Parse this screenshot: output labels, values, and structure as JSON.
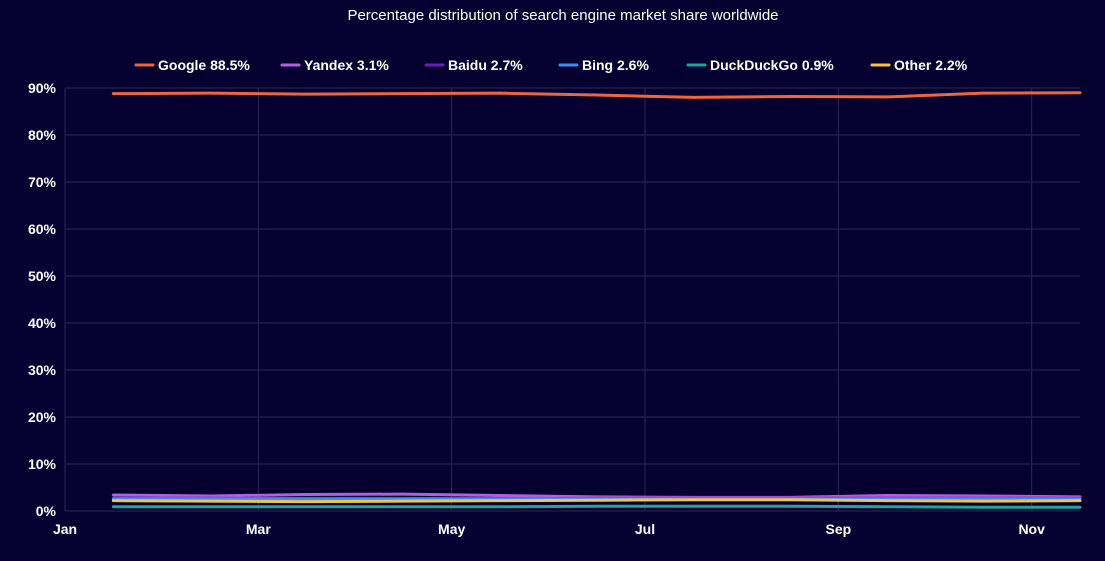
{
  "chart_data": {
    "type": "line",
    "title": "Percentage distribution of search engine market share worldwide",
    "xlabel": "",
    "ylabel": "",
    "ylim": [
      0,
      90
    ],
    "xlim": [
      1,
      11.5
    ],
    "grid": true,
    "legend_position": "top",
    "x_ticks": [
      {
        "x": 1,
        "label": "Jan"
      },
      {
        "x": 3,
        "label": "Mar"
      },
      {
        "x": 5,
        "label": "May"
      },
      {
        "x": 7,
        "label": "Jul"
      },
      {
        "x": 9,
        "label": "Sep"
      },
      {
        "x": 11,
        "label": "Nov"
      }
    ],
    "y_ticks": [
      {
        "y": 0,
        "label": "0%"
      },
      {
        "y": 10,
        "label": "10%"
      },
      {
        "y": 20,
        "label": "20%"
      },
      {
        "y": 30,
        "label": "30%"
      },
      {
        "y": 40,
        "label": "40%"
      },
      {
        "y": 50,
        "label": "50%"
      },
      {
        "y": 60,
        "label": "60%"
      },
      {
        "y": 70,
        "label": "70%"
      },
      {
        "y": 80,
        "label": "80%"
      },
      {
        "y": 90,
        "label": "90%"
      }
    ],
    "x": [
      1.5,
      2.5,
      3.5,
      4.5,
      5.5,
      6.5,
      7.5,
      8.5,
      9.5,
      10.5,
      11.5
    ],
    "series": [
      {
        "name": "Google",
        "value_label": "88.5%",
        "color": "#f0653b",
        "values": [
          88.8,
          88.9,
          88.7,
          88.8,
          88.9,
          88.5,
          88.0,
          88.2,
          88.1,
          88.9,
          89.0
        ]
      },
      {
        "name": "Yandex",
        "value_label": "3.1%",
        "color": "#b15fe0",
        "values": [
          3.4,
          3.2,
          3.5,
          3.6,
          3.3,
          3.0,
          2.9,
          2.9,
          3.3,
          3.2,
          3.0
        ]
      },
      {
        "name": "Baidu",
        "value_label": "2.7%",
        "color": "#6a1fb0",
        "values": [
          2.7,
          2.7,
          2.6,
          2.6,
          2.6,
          2.7,
          2.7,
          2.7,
          2.7,
          2.7,
          2.7
        ]
      },
      {
        "name": "Bing",
        "value_label": "2.6%",
        "color": "#3b8df5",
        "values": [
          2.6,
          2.6,
          2.6,
          2.6,
          2.6,
          2.6,
          2.6,
          2.6,
          2.6,
          2.6,
          2.6
        ]
      },
      {
        "name": "DuckDuckGo",
        "value_label": "0.9%",
        "color": "#1fa59a",
        "values": [
          0.9,
          0.9,
          0.9,
          0.9,
          0.9,
          1.0,
          1.0,
          1.0,
          0.9,
          0.8,
          0.8
        ]
      },
      {
        "name": "Other",
        "value_label": "2.2%",
        "color": "#f5c542",
        "values": [
          2.2,
          2.1,
          2.0,
          2.1,
          2.2,
          2.3,
          2.4,
          2.4,
          2.2,
          2.1,
          2.2
        ]
      }
    ]
  }
}
